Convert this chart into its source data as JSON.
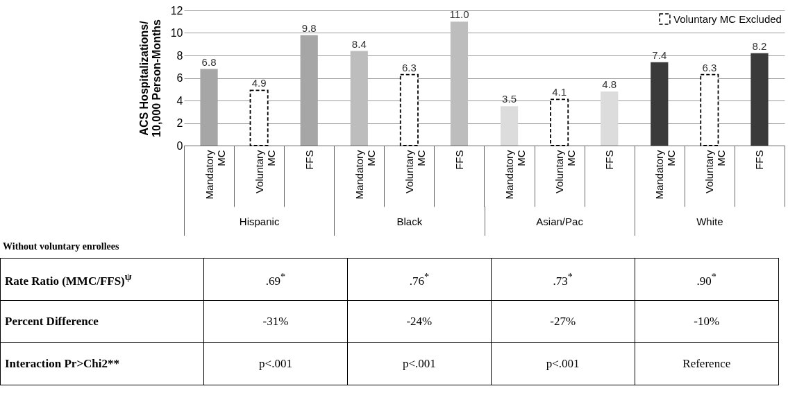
{
  "chart_data": {
    "type": "bar",
    "ylabel": "ACS Hospitalizations/\n10,000 Person-Months",
    "categories": [
      "Mandatory MC",
      "Voluntary MC",
      "FFS",
      "Mandatory MC",
      "Voluntary MC",
      "FFS",
      "Mandatory MC",
      "Voluntary MC",
      "FFS",
      "Mandatory MC",
      "Voluntary MC",
      "FFS"
    ],
    "series": [
      {
        "colors": [
          "#a6a6a6",
          null,
          "#a6a6a6",
          "#bdbdbd",
          null,
          "#bdbdbd",
          "#dcdcdc",
          null,
          "#dcdcdc",
          "#3a3a3a",
          null,
          "#3a3a3a"
        ],
        "values": [
          6.8,
          null,
          9.8,
          8.4,
          null,
          11.0,
          3.5,
          null,
          4.8,
          7.4,
          null,
          8.2
        ],
        "value_labels": [
          "6.8",
          null,
          "9.8",
          "8.4",
          null,
          "11.0",
          "3.5",
          null,
          "4.8",
          "7.4",
          null,
          "8.2"
        ]
      },
      {
        "name": "Voluntary MC Excluded",
        "color": "#000000",
        "line_style": "dashed",
        "values": [
          null,
          4.9,
          null,
          null,
          6.3,
          null,
          null,
          4.1,
          null,
          null,
          6.3,
          null
        ],
        "value_labels": [
          null,
          "4.9",
          null,
          null,
          "6.3",
          null,
          null,
          "4.1",
          null,
          null,
          "6.3",
          null
        ]
      }
    ],
    "ylim": [
      0,
      12
    ],
    "yticks": [
      0,
      2,
      4,
      6,
      8,
      10,
      12
    ],
    "grid": "y",
    "legend": "top right",
    "annotations": [
      "Hispanic",
      "Black",
      "Asian/Pac",
      "White",
      "Without voluntary enrollees",
      "Rate Ratio (MMC/FFS)$^{ψ}$",
      ".69$^{*}$",
      ".76$^{*}$",
      ".73$^{*}$",
      ".90$^{*}$",
      "Percent Difference",
      "-31%",
      "-24%",
      "-27%",
      "-10%",
      "Interaction Pr>Chi2**",
      "p<.001",
      "p<.001",
      "p<.001",
      "Reference"
    ]
  }
}
